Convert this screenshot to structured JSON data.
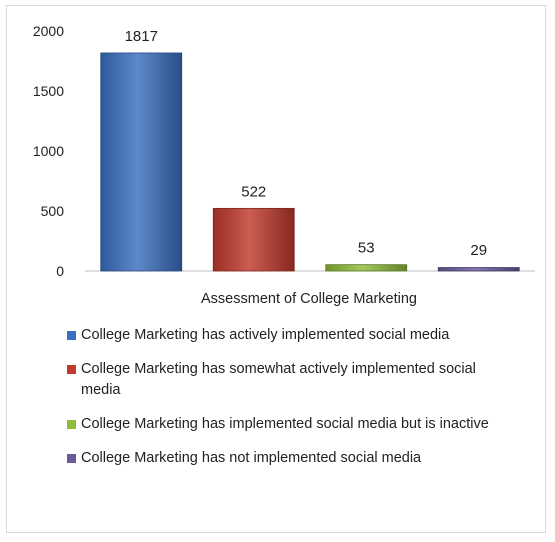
{
  "chart_data": {
    "type": "bar",
    "title": "",
    "xlabel": "Assessment of College Marketing",
    "ylabel": "",
    "ylim": [
      0,
      2000
    ],
    "yticks": [
      0,
      500,
      1000,
      1500,
      2000
    ],
    "ytick_labels": [
      "0",
      "500",
      "1000",
      "1500",
      "2000"
    ],
    "grid": false,
    "legend_position": "bottom",
    "series": [
      {
        "name": "College Marketing has actively implemented social media",
        "value": 1817,
        "label": "1817",
        "color": "#3a6fc0"
      },
      {
        "name": "College Marketing has somewhat actively implemented social media",
        "value": 522,
        "label": "522",
        "color": "#c0392b"
      },
      {
        "name": "College Marketing has implemented social media but is inactive",
        "value": 53,
        "label": "53",
        "color": "#8fbb3a"
      },
      {
        "name": "College Marketing has not implemented social media",
        "value": 29,
        "label": "29",
        "color": "#6a5a9c"
      }
    ]
  }
}
